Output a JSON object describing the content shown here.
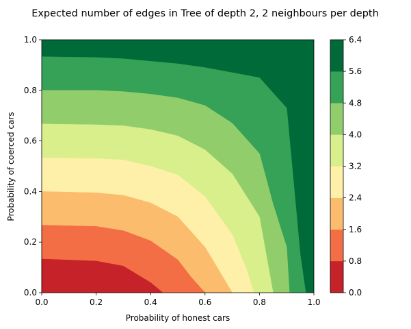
{
  "chart_data": {
    "type": "contour",
    "title": "Expected number of edges in Tree of depth 2, 2 neighbours per depth",
    "xlabel": "Probability of honest cars",
    "ylabel": "Probability of coerced cars",
    "xlim": [
      0.0,
      1.0
    ],
    "ylim": [
      0.0,
      1.0
    ],
    "x_ticks": [
      "0.0",
      "0.2",
      "0.4",
      "0.6",
      "0.8",
      "1.0"
    ],
    "y_ticks": [
      "0.0",
      "0.2",
      "0.4",
      "0.6",
      "0.8",
      "1.0"
    ],
    "grid": false,
    "colorbar": {
      "levels": [
        0.0,
        0.8,
        1.6,
        2.4,
        3.2,
        4.0,
        4.8,
        5.6,
        6.4
      ],
      "tick_labels": [
        "0.0",
        "0.8",
        "1.6",
        "2.4",
        "3.2",
        "4.0",
        "4.8",
        "5.6",
        "6.4"
      ],
      "colors": [
        "#c6222a",
        "#f36d45",
        "#fbbc6e",
        "#fef0a8",
        "#d8ef8b",
        "#92cd6b",
        "#36a257",
        "#006a38"
      ]
    },
    "contour_lines": [
      {
        "level": 0.8,
        "points": [
          [
            0,
            0.133
          ],
          [
            0.2,
            0.125
          ],
          [
            0.3,
            0.105
          ],
          [
            0.4,
            0.04
          ],
          [
            0.445,
            0.0
          ]
        ]
      },
      {
        "level": 1.6,
        "points": [
          [
            0,
            0.267
          ],
          [
            0.2,
            0.262
          ],
          [
            0.3,
            0.245
          ],
          [
            0.4,
            0.205
          ],
          [
            0.5,
            0.13
          ],
          [
            0.55,
            0.06
          ],
          [
            0.6,
            0.0
          ]
        ]
      },
      {
        "level": 2.4,
        "points": [
          [
            0,
            0.4
          ],
          [
            0.2,
            0.395
          ],
          [
            0.3,
            0.385
          ],
          [
            0.4,
            0.355
          ],
          [
            0.5,
            0.3
          ],
          [
            0.6,
            0.18
          ],
          [
            0.65,
            0.09
          ],
          [
            0.7,
            0.0
          ]
        ]
      },
      {
        "level": 3.2,
        "points": [
          [
            0,
            0.533
          ],
          [
            0.2,
            0.53
          ],
          [
            0.3,
            0.525
          ],
          [
            0.4,
            0.5
          ],
          [
            0.5,
            0.465
          ],
          [
            0.6,
            0.38
          ],
          [
            0.7,
            0.23
          ],
          [
            0.75,
            0.1
          ],
          [
            0.78,
            0.0
          ]
        ]
      },
      {
        "level": 4.0,
        "points": [
          [
            0,
            0.667
          ],
          [
            0.2,
            0.664
          ],
          [
            0.3,
            0.66
          ],
          [
            0.4,
            0.645
          ],
          [
            0.5,
            0.62
          ],
          [
            0.6,
            0.565
          ],
          [
            0.7,
            0.47
          ],
          [
            0.8,
            0.3
          ],
          [
            0.85,
            0.0
          ]
        ]
      },
      {
        "level": 4.8,
        "points": [
          [
            0,
            0.8
          ],
          [
            0.2,
            0.8
          ],
          [
            0.3,
            0.795
          ],
          [
            0.4,
            0.785
          ],
          [
            0.5,
            0.77
          ],
          [
            0.6,
            0.74
          ],
          [
            0.7,
            0.67
          ],
          [
            0.8,
            0.55
          ],
          [
            0.85,
            0.35
          ],
          [
            0.9,
            0.18
          ],
          [
            0.91,
            0.0
          ]
        ]
      },
      {
        "level": 5.6,
        "points": [
          [
            0,
            0.933
          ],
          [
            0.2,
            0.93
          ],
          [
            0.3,
            0.925
          ],
          [
            0.4,
            0.915
          ],
          [
            0.5,
            0.905
          ],
          [
            0.6,
            0.89
          ],
          [
            0.7,
            0.87
          ],
          [
            0.8,
            0.85
          ],
          [
            0.9,
            0.73
          ],
          [
            0.92,
            0.5
          ],
          [
            0.95,
            0.15
          ],
          [
            0.97,
            0.0
          ]
        ]
      }
    ]
  }
}
